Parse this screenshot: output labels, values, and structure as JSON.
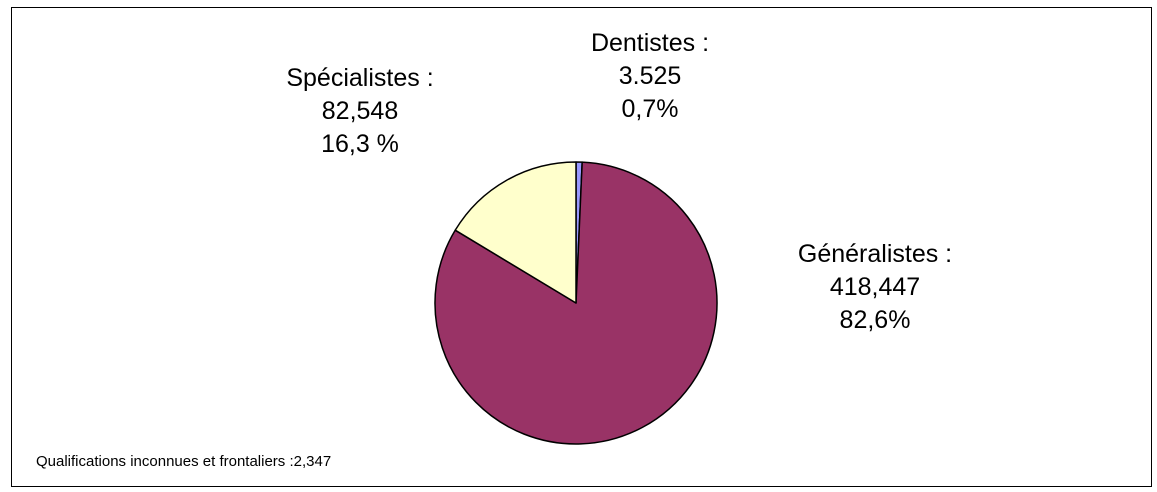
{
  "chart_data": {
    "type": "pie",
    "slices": [
      {
        "category": "Généralistes",
        "value": 418447,
        "percent": 82.6,
        "color": "#993366",
        "label_lines": [
          "Généralistes :",
          "418,447",
          "82,6%"
        ]
      },
      {
        "category": "Spécialistes",
        "value": 82548,
        "percent": 16.3,
        "color": "#FFFFCC",
        "label_lines": [
          "Spécialistes :",
          "82,548",
          "16,3 %"
        ]
      },
      {
        "category": "Dentistes",
        "value": 3525,
        "percent": 0.7,
        "color": "#9999FF",
        "label_lines": [
          "Dentistes :",
          "3.525",
          "0,7%"
        ]
      }
    ],
    "start_angle_deg": 0,
    "direction": "clockwise",
    "edge_color": "#000000"
  },
  "footnote": "Qualifications inconnues et frontaliers :2,347"
}
